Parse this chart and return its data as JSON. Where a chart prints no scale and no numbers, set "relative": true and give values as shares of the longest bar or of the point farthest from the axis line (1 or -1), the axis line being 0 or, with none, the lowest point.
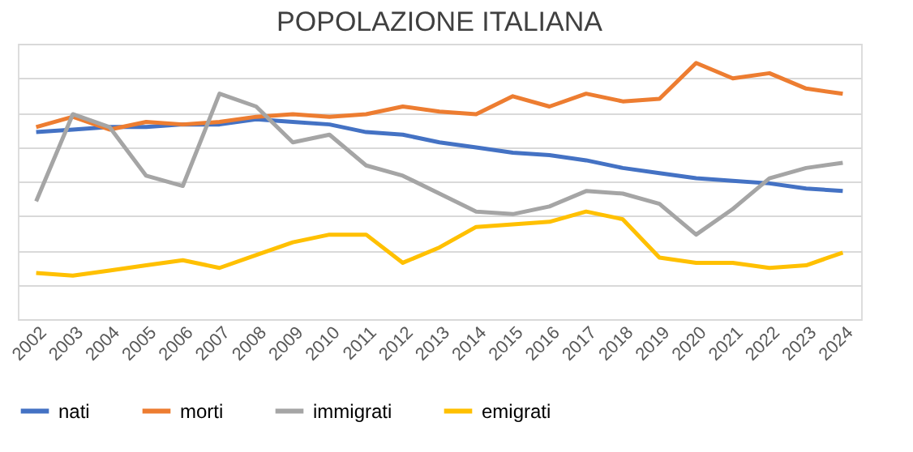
{
  "chart_data": {
    "type": "line",
    "title": "POPOLAZIONE ITALIANA",
    "relative": true,
    "grid": "y",
    "legend": "bottom",
    "marker": "none",
    "line_style": "solid",
    "categories": [
      "2002",
      "2003",
      "2004",
      "2005",
      "2006",
      "2007",
      "2008",
      "2009",
      "2010",
      "2011",
      "2012",
      "2013",
      "2014",
      "2015",
      "2016",
      "2017",
      "2018",
      "2019",
      "2020",
      "2021",
      "2022",
      "2023",
      "2024"
    ],
    "series": [
      {
        "name": "nati",
        "color": "#4472c4",
        "values": [
          0.73,
          0.74,
          0.75,
          0.75,
          0.76,
          0.76,
          0.78,
          0.77,
          0.76,
          0.73,
          0.72,
          0.69,
          0.67,
          0.65,
          0.64,
          0.62,
          0.59,
          0.57,
          0.55,
          0.54,
          0.53,
          0.51,
          0.5
        ]
      },
      {
        "name": "morti",
        "color": "#ed7d31",
        "values": [
          0.75,
          0.79,
          0.74,
          0.77,
          0.76,
          0.77,
          0.79,
          0.8,
          0.79,
          0.8,
          0.83,
          0.81,
          0.8,
          0.87,
          0.83,
          0.88,
          0.85,
          0.86,
          1,
          0.94,
          0.96,
          0.9,
          0.88
        ]
      },
      {
        "name": "immigrati",
        "color": "#a5a5a5",
        "values": [
          0.46,
          0.8,
          0.75,
          0.56,
          0.52,
          0.88,
          0.83,
          0.69,
          0.72,
          0.6,
          0.56,
          0.49,
          0.42,
          0.41,
          0.44,
          0.5,
          0.49,
          0.45,
          0.33,
          0.43,
          0.55,
          0.59,
          0.61
        ]
      },
      {
        "name": "emigrati",
        "color": "#ffc000",
        "values": [
          0.18,
          0.17,
          0.19,
          0.21,
          0.23,
          0.2,
          0.25,
          0.3,
          0.33,
          0.33,
          0.22,
          0.28,
          0.36,
          0.37,
          0.38,
          0.42,
          0.39,
          0.24,
          0.22,
          0.22,
          0.2,
          0.21,
          0.26
        ]
      }
    ]
  }
}
